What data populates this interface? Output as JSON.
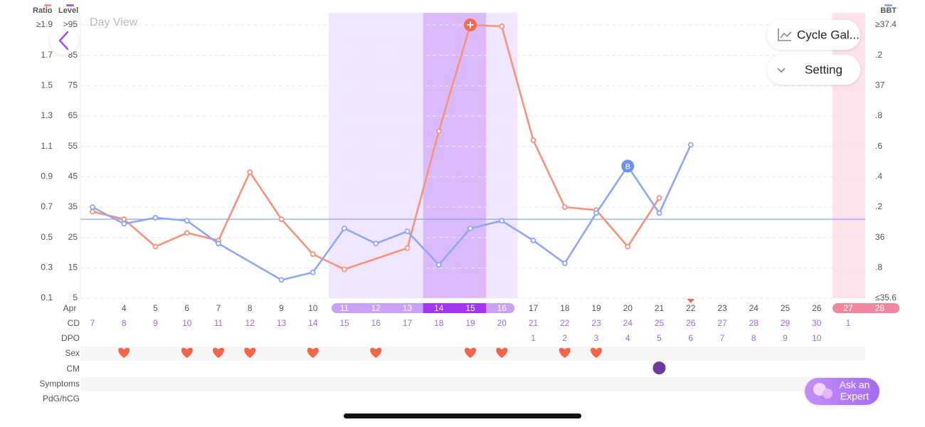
{
  "header": {
    "title": "Day View",
    "buttons": [
      "Cycle Gal...",
      "Setting"
    ],
    "expert_button": [
      "Ask an",
      "Expert"
    ]
  },
  "chart_data": {
    "type": "line",
    "level_axis_label": "Level",
    "xlim": [
      3,
      28
    ],
    "xticks": [
      {
        "value": 3,
        "label": "Apr"
      },
      4,
      5,
      6,
      7,
      8,
      9,
      10,
      11,
      12,
      13,
      14,
      15,
      16,
      17,
      18,
      19,
      20,
      21,
      22,
      23,
      24,
      25,
      26,
      27,
      28
    ],
    "ylim": [
      0.1,
      1.9
    ],
    "yticks": [
      {
        "value": 1.9,
        "label": "≥1.9"
      },
      1.7,
      1.5,
      1.3,
      1.1,
      0.9,
      0.7,
      0.5,
      0.3,
      0.1
    ],
    "level_lim": [
      5,
      95
    ],
    "level_ticks": [
      {
        "value": 95,
        "label": ">95"
      },
      85,
      75,
      65,
      55,
      45,
      35,
      25,
      15,
      5
    ],
    "y2lim": [
      35.6,
      37.4
    ],
    "y2ticks": [
      {
        "value": 37.4,
        "label": "≥37.4"
      },
      {
        "value": 37.2,
        "label": ".2"
      },
      37,
      {
        "value": 36.8,
        "label": ".8"
      },
      {
        "value": 36.6,
        "label": ".6"
      },
      {
        "value": 36.4,
        "label": ".4"
      },
      {
        "value": 36.2,
        "label": ".2"
      },
      36,
      {
        "value": 35.8,
        "label": ".8"
      },
      {
        "value": 35.6,
        "label": "≤35.6"
      }
    ],
    "grid": true,
    "series": [
      {
        "name": "Ratio",
        "color": "#f5937f",
        "x": [
          3,
          4,
          5,
          6,
          7,
          8,
          9,
          10,
          11,
          13,
          14,
          15,
          16,
          17,
          18,
          19,
          20,
          21
        ],
        "values": [
          0.67,
          0.62,
          0.44,
          0.53,
          0.48,
          0.93,
          0.62,
          0.39,
          0.29,
          0.43,
          1.2,
          1.9,
          1.89,
          1.14,
          0.7,
          0.68,
          0.44,
          0.76
        ]
      },
      {
        "name": "BBT",
        "color": "#8fa7f4",
        "axis": "y2",
        "x": [
          3,
          4,
          5,
          6,
          7,
          9,
          10,
          11,
          12,
          13,
          14,
          15,
          16,
          17,
          18,
          19,
          20,
          21,
          22
        ],
        "values": [
          36.2,
          36.09,
          36.13,
          36.11,
          35.96,
          35.72,
          35.77,
          36.06,
          35.96,
          36.04,
          35.82,
          36.06,
          36.11,
          35.98,
          35.83,
          36.16,
          36.47,
          36.16,
          36.61
        ]
      }
    ],
    "level_color": "#a45ef0",
    "coverline": 36.12,
    "fertile_window": [
      11,
      16
    ],
    "peak_days": [
      14,
      15
    ],
    "period_days": [
      27,
      28
    ],
    "today": 22,
    "peak_marker": {
      "series": 0,
      "x": 15
    },
    "annotations": [
      {
        "text": "B",
        "series": 1,
        "x": 20
      }
    ]
  },
  "rows": [
    {
      "label": "CD",
      "start_day": 3,
      "values": [
        7,
        8,
        9,
        10,
        11,
        12,
        13,
        14,
        15,
        16,
        17,
        18,
        19,
        20,
        21,
        22,
        23,
        24,
        25,
        26,
        27,
        28,
        29,
        30,
        1
      ]
    },
    {
      "label": "DPO",
      "start_day": 17,
      "values": [
        1,
        2,
        3,
        4,
        5,
        6,
        7,
        8,
        9,
        10
      ]
    },
    {
      "label": "Sex",
      "days": [
        4,
        6,
        7,
        8,
        10,
        12,
        15,
        16,
        18,
        19
      ]
    },
    {
      "label": "CM",
      "days": [
        21
      ]
    },
    {
      "label": "Symptoms"
    },
    {
      "label": "PdG/hCG"
    }
  ]
}
